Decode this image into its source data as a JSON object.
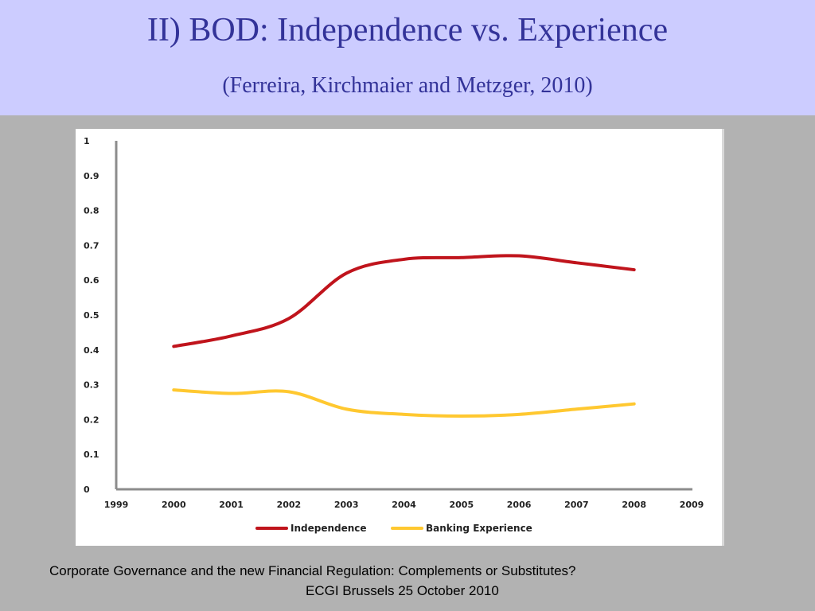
{
  "slide": {
    "title": "II) BOD: Independence vs. Experience",
    "subtitle": "(Ferreira, Kirchmaier and Metzger, 2010)",
    "footer_line1": "Corporate Governance and the new Financial Regulation: Complements or Substitutes?",
    "footer_line2": "ECGI Brussels 25 October 2010"
  },
  "colors": {
    "header_bg": "#ccccff",
    "title_text": "#333399",
    "independence": "#c0141c",
    "banking_experience": "#ffc830",
    "axis": "#8c8c8c"
  },
  "chart_data": {
    "type": "line",
    "xlim": [
      1999,
      2009
    ],
    "ylim": [
      0,
      1
    ],
    "x_ticks": [
      "1999",
      "2000",
      "2001",
      "2002",
      "2003",
      "2004",
      "2005",
      "2006",
      "2007",
      "2008",
      "2009"
    ],
    "y_ticks": [
      "0",
      "0.1",
      "0.2",
      "0.3",
      "0.4",
      "0.5",
      "0.6",
      "0.7",
      "0.8",
      "0.9",
      "1"
    ],
    "x": [
      2000,
      2001,
      2002,
      2003,
      2004,
      2005,
      2006,
      2007,
      2008
    ],
    "grid": false,
    "legend_position": "bottom",
    "series": [
      {
        "name": "Independence",
        "color": "#c0141c",
        "values": [
          0.41,
          0.44,
          0.49,
          0.62,
          0.66,
          0.665,
          0.67,
          0.65,
          0.63
        ]
      },
      {
        "name": "Banking Experience",
        "color": "#ffc830",
        "values": [
          0.285,
          0.275,
          0.28,
          0.23,
          0.215,
          0.21,
          0.215,
          0.23,
          0.245
        ]
      }
    ]
  }
}
